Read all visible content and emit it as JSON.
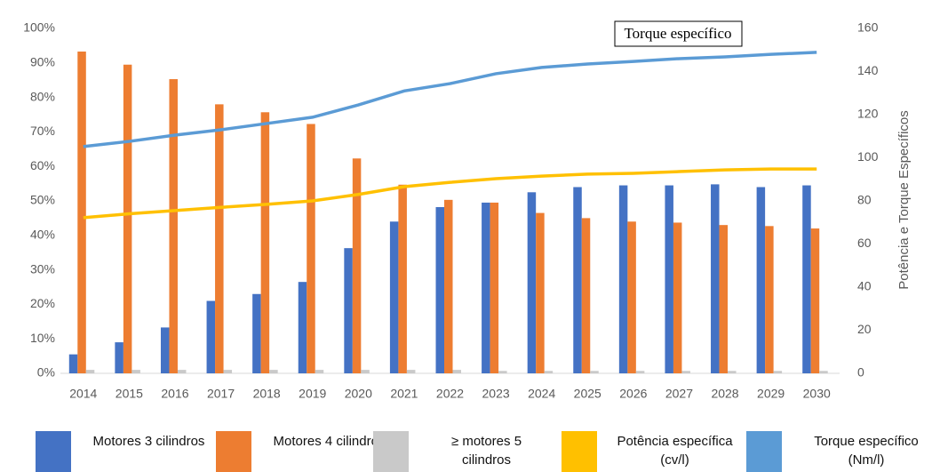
{
  "chart_data": {
    "type": "bar_line",
    "annotation": "Torque específico",
    "y2_label": "Potência e Torque Específicos",
    "categories": [
      "2014",
      "2015",
      "2016",
      "2017",
      "2018",
      "2019",
      "2020",
      "2021",
      "2022",
      "2023",
      "2024",
      "2025",
      "2026",
      "2027",
      "2028",
      "2029",
      "2030"
    ],
    "series": [
      {
        "name": "Motores 3 cilindros",
        "type": "bar",
        "color": "#4472c4",
        "values": [
          5.5,
          9,
          13.3,
          21,
          23,
          26.5,
          36.3,
          44,
          48.2,
          49.5,
          52.5,
          54,
          54.5,
          54.5,
          54.8,
          54,
          54.5
        ]
      },
      {
        "name": "Motores 4 cilindros",
        "type": "bar",
        "color": "#ed7d31",
        "values": [
          93.3,
          89.5,
          85.3,
          78,
          75.7,
          72.3,
          62.3,
          54.7,
          50.3,
          49.5,
          46.5,
          45,
          44,
          43.7,
          43,
          42.7,
          42
        ]
      },
      {
        "name": "≥ motores 5 cilindros",
        "type": "bar",
        "color": "#c9c9c9",
        "values": [
          1,
          1,
          1,
          1,
          1,
          1,
          1,
          1,
          1,
          0.7,
          0.7,
          0.7,
          0.7,
          0.7,
          0.7,
          0.7,
          0.7
        ]
      },
      {
        "name": "Potência específica (cv/l)",
        "type": "line",
        "axis": "y2",
        "color": "#ffc000",
        "values": [
          72.2,
          74,
          75.5,
          77,
          78.4,
          80,
          83,
          86.6,
          88.6,
          90.3,
          91.5,
          92.4,
          92.8,
          93.6,
          94.4,
          94.8,
          94.8
        ]
      },
      {
        "name": "Torque específico (Nm/l)",
        "type": "line",
        "axis": "y2",
        "color": "#5b9bd5",
        "values": [
          105.2,
          107.6,
          110.5,
          113,
          115.9,
          118.8,
          124.5,
          131,
          134.4,
          139,
          141.9,
          143.5,
          144.7,
          146,
          146.8,
          148,
          148.9
        ]
      }
    ],
    "ylim": [
      0,
      100
    ],
    "yticks": [
      {
        "value": 0,
        "label": "0%"
      },
      {
        "value": 10,
        "label": "10%"
      },
      {
        "value": 20,
        "label": "20%"
      },
      {
        "value": 30,
        "label": "30%"
      },
      {
        "value": 40,
        "label": "40%"
      },
      {
        "value": 50,
        "label": "50%"
      },
      {
        "value": 60,
        "label": "60%"
      },
      {
        "value": 70,
        "label": "70%"
      },
      {
        "value": 80,
        "label": "80%"
      },
      {
        "value": 90,
        "label": "90%"
      },
      {
        "value": 100,
        "label": "100%"
      }
    ],
    "y2lim": [
      0,
      160
    ],
    "y2ticks": [
      0,
      20,
      40,
      60,
      80,
      100,
      120,
      140,
      160
    ],
    "grid": false
  }
}
